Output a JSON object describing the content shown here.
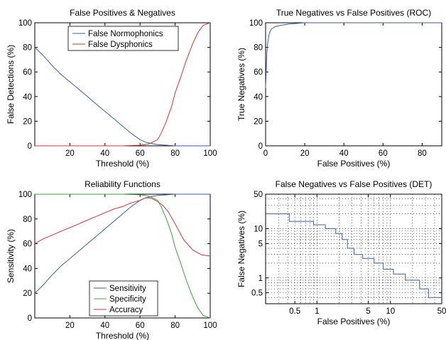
{
  "chart_data": [
    {
      "type": "line",
      "title": "False Positives & Negatives",
      "xlabel": "Threshold (%)",
      "ylabel": "False Detections (%)",
      "xlim": [
        0,
        100
      ],
      "ylim": [
        0,
        100
      ],
      "xticks": [
        20,
        40,
        60,
        80,
        100
      ],
      "yticks": [
        0,
        20,
        40,
        60,
        80,
        100
      ],
      "grid": false,
      "legend": "top-center",
      "series": [
        {
          "name": "False Normophonics",
          "color": "#3a5ea8",
          "x": [
            0,
            5,
            10,
            15,
            20,
            25,
            30,
            35,
            40,
            45,
            50,
            55,
            60,
            63,
            66,
            70,
            75,
            80,
            85,
            100
          ],
          "y": [
            80,
            73,
            65,
            58,
            52,
            46,
            40,
            34,
            28,
            22,
            16,
            10,
            5,
            3,
            2,
            1,
            0.5,
            0,
            0,
            0
          ]
        },
        {
          "name": "False Dysphonics",
          "color": "#e03030",
          "x": [
            0,
            45,
            50,
            55,
            60,
            63,
            66,
            70,
            72,
            75,
            78,
            80,
            83,
            86,
            90,
            93,
            96,
            100
          ],
          "y": [
            0,
            0,
            0,
            0.3,
            0.5,
            1,
            2,
            5,
            10,
            20,
            32,
            43,
            55,
            68,
            83,
            92,
            98,
            100
          ]
        }
      ]
    },
    {
      "type": "line",
      "title": "True Negatives vs False Positives (ROC)",
      "xlabel": "False Positives (%)",
      "ylabel": "True Negatives (%)",
      "xlim": [
        0,
        90
      ],
      "ylim": [
        0,
        100
      ],
      "xticks": [
        0,
        20,
        40,
        60,
        80
      ],
      "yticks": [
        0,
        20,
        40,
        60,
        80,
        100
      ],
      "grid": false,
      "series": [
        {
          "color": "#3a5ea8",
          "x": [
            0,
            0.3,
            0.6,
            1,
            1.5,
            2,
            3,
            5,
            8,
            12,
            16,
            20,
            90
          ],
          "y": [
            47,
            60,
            75,
            83,
            88,
            92,
            95,
            97,
            98,
            99,
            99.5,
            100,
            100
          ]
        }
      ]
    },
    {
      "type": "line",
      "title": "Reliability Functions",
      "xlabel": "Threshold (%)",
      "ylabel": "Sensitivity (%)",
      "xlim": [
        0,
        100
      ],
      "ylim": [
        0,
        100
      ],
      "xticks": [
        20,
        40,
        60,
        80,
        100
      ],
      "yticks": [
        0,
        20,
        40,
        60,
        80,
        100
      ],
      "grid": false,
      "legend": "bottom-center",
      "series": [
        {
          "name": "Sensitivity",
          "color": "#3a5ea8",
          "x": [
            0,
            5,
            10,
            15,
            20,
            25,
            30,
            35,
            40,
            45,
            50,
            55,
            60,
            63,
            66,
            70,
            75,
            80,
            85,
            100
          ],
          "y": [
            20,
            27,
            35,
            42,
            48,
            54,
            60,
            66,
            72,
            78,
            84,
            90,
            95,
            97,
            98,
            99,
            99.5,
            100,
            100,
            100
          ]
        },
        {
          "name": "Specificity",
          "color": "#3aa83a",
          "x": [
            0,
            45,
            50,
            55,
            60,
            63,
            66,
            70,
            72,
            75,
            78,
            80,
            83,
            86,
            90,
            93,
            96,
            100
          ],
          "y": [
            100,
            100,
            100,
            99.7,
            99.5,
            99,
            98,
            95,
            90,
            80,
            68,
            57,
            45,
            32,
            17,
            8,
            2,
            0
          ]
        },
        {
          "name": "Accuracy",
          "color": "#e03030",
          "x": [
            0,
            5,
            10,
            15,
            20,
            25,
            30,
            35,
            40,
            45,
            50,
            55,
            60,
            63,
            66,
            70,
            73,
            76,
            80,
            85,
            90,
            95,
            100
          ],
          "y": [
            60,
            64,
            67,
            70,
            73,
            76,
            79,
            82,
            85,
            88,
            90,
            93,
            95,
            97,
            97,
            94,
            91,
            86,
            76,
            63,
            55,
            51,
            50
          ]
        }
      ]
    },
    {
      "type": "line",
      "title": "False Negatives vs False Positives (DET)",
      "xlabel": "False Positives (%)",
      "ylabel": "False Negatives (%)",
      "xscale": "log",
      "yscale": "log",
      "xlim": [
        0.2,
        50
      ],
      "ylim": [
        0.3,
        50
      ],
      "xticks": [
        "0.5",
        "1",
        "5",
        "10",
        "50"
      ],
      "yticks": [
        "0.5",
        "1",
        "5",
        "10",
        "50"
      ],
      "grid": true,
      "series": [
        {
          "color": "#3a5ea8",
          "x": [
            0.2,
            0.42,
            0.42,
            0.9,
            0.9,
            1.3,
            1.3,
            1.8,
            1.8,
            2.2,
            2.2,
            2.6,
            2.6,
            3.2,
            3.2,
            4.2,
            4.2,
            6,
            6,
            8,
            8,
            11,
            11,
            16,
            16,
            25,
            25,
            33,
            33,
            50
          ],
          "y": [
            20,
            20,
            14,
            14,
            12,
            12,
            10,
            10,
            8,
            8,
            6,
            6,
            4,
            4,
            3,
            3,
            2.5,
            2.5,
            2,
            2,
            1.5,
            1.5,
            1.2,
            1.2,
            0.9,
            0.9,
            0.6,
            0.6,
            0.4,
            0.4
          ]
        }
      ]
    }
  ]
}
